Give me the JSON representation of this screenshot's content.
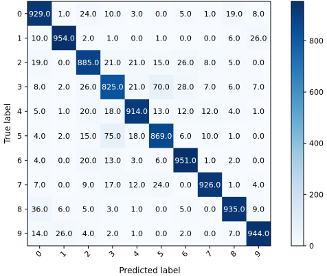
{
  "chart_data": {
    "type": "heatmap",
    "title": "",
    "xlabel": "Predicted label",
    "ylabel": "True label",
    "x_categories": [
      "0",
      "1",
      "2",
      "3",
      "4",
      "5",
      "6",
      "7",
      "8",
      "9"
    ],
    "y_categories": [
      "0",
      "1",
      "2",
      "3",
      "4",
      "5",
      "6",
      "7",
      "8",
      "9"
    ],
    "values": [
      [
        929.0,
        1.0,
        24.0,
        10.0,
        3.0,
        0.0,
        5.0,
        1.0,
        19.0,
        8.0
      ],
      [
        10.0,
        954.0,
        2.0,
        1.0,
        0.0,
        1.0,
        0.0,
        0.0,
        6.0,
        26.0
      ],
      [
        19.0,
        0.0,
        885.0,
        21.0,
        21.0,
        15.0,
        26.0,
        8.0,
        5.0,
        0.0
      ],
      [
        8.0,
        2.0,
        26.0,
        825.0,
        21.0,
        70.0,
        28.0,
        7.0,
        6.0,
        7.0
      ],
      [
        5.0,
        1.0,
        20.0,
        18.0,
        914.0,
        13.0,
        12.0,
        12.0,
        4.0,
        1.0
      ],
      [
        4.0,
        2.0,
        15.0,
        75.0,
        18.0,
        869.0,
        6.0,
        10.0,
        1.0,
        0.0
      ],
      [
        4.0,
        0.0,
        20.0,
        13.0,
        3.0,
        6.0,
        951.0,
        1.0,
        2.0,
        0.0
      ],
      [
        7.0,
        0.0,
        9.0,
        17.0,
        12.0,
        24.0,
        0.0,
        926.0,
        1.0,
        4.0
      ],
      [
        36.0,
        6.0,
        5.0,
        3.0,
        1.0,
        0.0,
        5.0,
        0.0,
        935.0,
        9.0
      ],
      [
        14.0,
        26.0,
        4.0,
        2.0,
        1.0,
        0.0,
        2.0,
        0.0,
        7.0,
        944.0
      ]
    ],
    "colorbar": {
      "ticks": [
        "0",
        "200",
        "400",
        "600",
        "800"
      ],
      "tick_values": [
        0,
        200,
        400,
        600,
        800
      ],
      "vmin": 0,
      "vmax": 954,
      "colormap": "Blues"
    },
    "colors": {
      "low": "#f7fbff",
      "high": "#08306b",
      "text_dark": "#000000",
      "text_light": "#ffffff"
    }
  }
}
